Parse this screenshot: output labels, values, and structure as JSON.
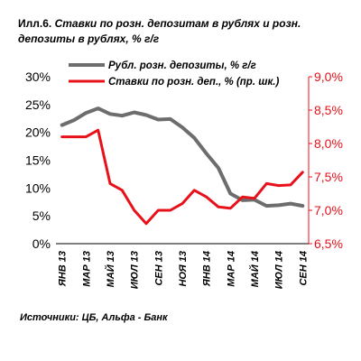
{
  "header": {
    "prefix": "Илл.6.",
    "title": "Ставки по розн. депозитам в рублях и розн. депозиты в рублях, % г/г"
  },
  "source": "Источники: ЦБ, Альфа - Банк",
  "colors": {
    "deposits": "#6d6d6d",
    "rates": "#e8111a",
    "left_axis": "#000000",
    "right_axis": "#e8111a"
  },
  "chart_data": {
    "type": "line",
    "x": [
      "ЯНВ 13",
      "ФЕВ 13",
      "МАР 13",
      "АПР 13",
      "МАЙ 13",
      "ИЮН 13",
      "ИЮЛ 13",
      "АВГ 13",
      "СЕН 13",
      "ОКТ 13",
      "НОЯ 13",
      "ДЕК 13",
      "ЯНВ 14",
      "ФЕВ 14",
      "МАР 14",
      "АПР 14",
      "МАЙ 14",
      "ИЮН 14",
      "ИЮЛ 14",
      "АВГ 14",
      "СЕН 14"
    ],
    "x_tick_labels": [
      "ЯНВ 13",
      "МАР 13",
      "МАЙ 13",
      "ИЮЛ 13",
      "СЕН 13",
      "НОЯ 13",
      "ЯНВ 14",
      "МАР 14",
      "МАЙ 14",
      "ИЮЛ 14",
      "СЕН 14"
    ],
    "series": [
      {
        "name": "Рубл. розн. депозиты, % г/г",
        "axis": "left",
        "values": [
          21.3,
          22.2,
          23.5,
          24.3,
          23.3,
          23.0,
          23.6,
          23.1,
          22.3,
          22.4,
          20.9,
          19.0,
          16.2,
          13.6,
          9.0,
          7.8,
          7.9,
          6.8,
          6.9,
          7.2,
          6.8
        ]
      },
      {
        "name": "Ставки по розн. деп., % (пр. шк.)",
        "axis": "right",
        "values": [
          8.1,
          8.1,
          8.1,
          8.2,
          7.4,
          7.3,
          7.0,
          6.8,
          7.0,
          7.0,
          7.1,
          7.3,
          7.2,
          7.05,
          7.03,
          7.2,
          7.18,
          7.4,
          7.37,
          7.38,
          7.57
        ]
      }
    ],
    "y_left": {
      "ylim": [
        0,
        30
      ],
      "ticks": [
        "0%",
        "5%",
        "10%",
        "15%",
        "20%",
        "25%",
        "30%"
      ]
    },
    "y_right": {
      "ylim": [
        6.5,
        9.0
      ],
      "ticks": [
        "6,5%",
        "7,0%",
        "7,5%",
        "8,0%",
        "8,5%",
        "9,0%"
      ]
    },
    "legend_position": "top"
  }
}
